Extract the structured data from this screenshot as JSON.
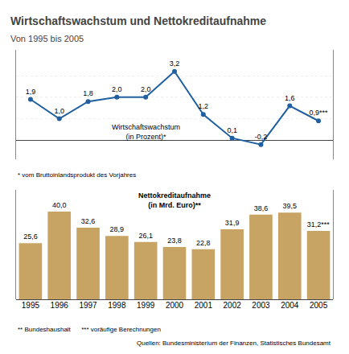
{
  "chart_data": [
    {
      "type": "line",
      "title": "Wirtschaftswachstum und Nettokreditaufnahme",
      "subtitle": "Von 1995 bis 2005",
      "categories": [
        "1995",
        "1996",
        "1997",
        "1998",
        "1999",
        "2000",
        "2001",
        "2002",
        "2003",
        "2004",
        "2005"
      ],
      "values": [
        1.9,
        1.0,
        1.8,
        2.0,
        2.0,
        3.2,
        1.2,
        0.1,
        -0.2,
        1.6,
        0.9
      ],
      "value_labels": [
        "1,9",
        "1,0",
        "1,8",
        "2,0",
        "2,0",
        "3,2",
        "1,2",
        "0,1",
        "-0,2",
        "1,6",
        "0,9***"
      ],
      "data_labels": true,
      "color": "#2060a0",
      "marker": "o",
      "ylim": [
        -0.9,
        4.2
      ],
      "yticks": [
        1,
        2,
        3
      ],
      "grid": true,
      "tick_labels": false,
      "annotations": [
        "Wirtschaftswachstum\n(in Prozent)*",
        "* vom Bruttoinlandsprodukt des Vorjahres"
      ]
    },
    {
      "type": "bar",
      "categories": [
        "1995",
        "1996",
        "1997",
        "1998",
        "1999",
        "2000",
        "2001",
        "2002",
        "2003",
        "2004",
        "2005"
      ],
      "values": [
        25.6,
        40.0,
        32.6,
        28.9,
        26.1,
        23.8,
        22.8,
        31.9,
        38.6,
        39.5,
        31.2
      ],
      "value_labels": [
        "25,6",
        "40,0",
        "32,6",
        "28,9",
        "26,1",
        "23,8",
        "22,8",
        "31,9",
        "38,6",
        "39,5",
        "31,2***"
      ],
      "data_labels": true,
      "color": "#c8a464",
      "ylim": [
        0,
        50
      ],
      "yticks": [],
      "grid": false,
      "tick_labels": "x",
      "annotations": [
        "Nettokreditaufnahme\n(in Mrd. Euro)**",
        "** Bundeshaushalt      *** voräufige Berechnungen",
        "Quellen: Bundesministerium der Finanzen, Statistisches Bundesamt"
      ]
    }
  ]
}
